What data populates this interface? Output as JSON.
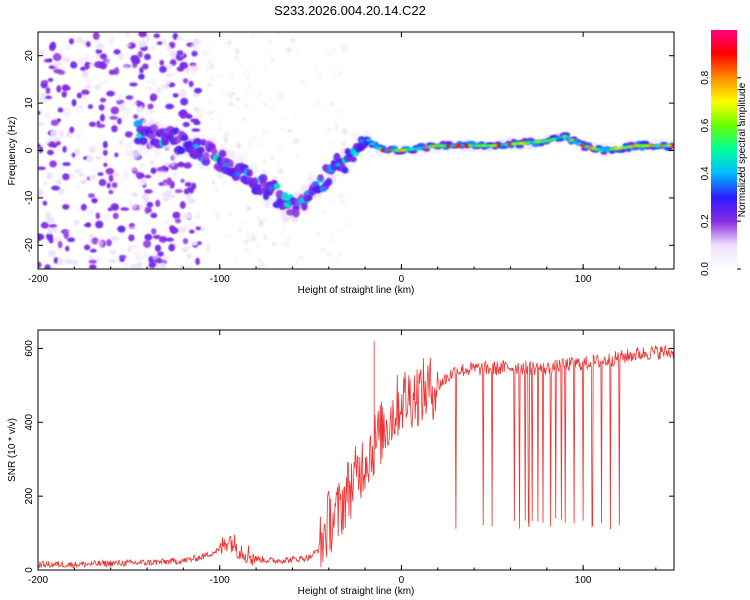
{
  "title": "S233.2026.004.20.14.C22",
  "chart_data": [
    {
      "type": "heatmap",
      "name": "spectrogram",
      "xlabel": "Height of straight line (km)",
      "ylabel": "Frequency (Hz)",
      "xlim": [
        -200,
        150
      ],
      "ylim": [
        -25,
        25
      ],
      "xticks": [
        -200,
        -100,
        0,
        100
      ],
      "yticks": [
        -20,
        -10,
        0,
        10,
        20
      ],
      "colorbar": {
        "label": "Normalized spectral amplitude",
        "range": [
          0,
          1
        ],
        "ticks": [
          0.0,
          0.2,
          0.4,
          0.6,
          0.8
        ],
        "colormap": [
          "#ffffff",
          "#ece0fb",
          "#8a2be2",
          "#2b1cff",
          "#00bcff",
          "#00ff9c",
          "#66ff00",
          "#ffff00",
          "#ff8c00",
          "#ff0000",
          "#ff0080"
        ]
      },
      "dominant_ridge": [
        {
          "x": -145,
          "y": 4
        },
        {
          "x": -130,
          "y": 3
        },
        {
          "x": -115,
          "y": 1
        },
        {
          "x": -100,
          "y": -2
        },
        {
          "x": -90,
          "y": -4
        },
        {
          "x": -80,
          "y": -7
        },
        {
          "x": -70,
          "y": -9
        },
        {
          "x": -60,
          "y": -12
        },
        {
          "x": -50,
          "y": -9
        },
        {
          "x": -45,
          "y": -7
        },
        {
          "x": -38,
          "y": -4
        },
        {
          "x": -30,
          "y": -2
        },
        {
          "x": -25,
          "y": 1
        },
        {
          "x": -20,
          "y": 3
        },
        {
          "x": -15,
          "y": 1
        },
        {
          "x": -10,
          "y": 0
        },
        {
          "x": 0,
          "y": 0
        },
        {
          "x": 20,
          "y": 1
        },
        {
          "x": 50,
          "y": 1
        },
        {
          "x": 80,
          "y": 2
        },
        {
          "x": 90,
          "y": 3
        },
        {
          "x": 100,
          "y": 1
        },
        {
          "x": 110,
          "y": 0
        },
        {
          "x": 130,
          "y": 1
        },
        {
          "x": 150,
          "y": 1
        }
      ],
      "noise_region": {
        "x_range": [
          -200,
          -110
        ],
        "y_range": [
          -25,
          25
        ]
      }
    },
    {
      "type": "line",
      "name": "snr",
      "xlabel": "Height of straight line (km)",
      "ylabel": "SNR (10 * v/v)",
      "xlim": [
        -200,
        150
      ],
      "ylim": [
        0,
        650
      ],
      "xticks": [
        -200,
        -100,
        0,
        100
      ],
      "yticks": [
        0,
        200,
        400,
        600
      ],
      "color": "#ee3333",
      "series": [
        {
          "name": "SNR",
          "x": [
            -200,
            -180,
            -160,
            -140,
            -120,
            -110,
            -100,
            -95,
            -90,
            -80,
            -70,
            -60,
            -50,
            -45,
            -40,
            -35,
            -30,
            -25,
            -20,
            -15,
            -10,
            -5,
            0,
            10,
            20,
            25,
            30,
            40,
            50,
            60,
            70,
            80,
            90,
            100,
            110,
            120,
            130,
            140,
            150
          ],
          "y": [
            15,
            15,
            18,
            20,
            25,
            35,
            55,
            85,
            60,
            30,
            25,
            28,
            35,
            60,
            130,
            150,
            210,
            250,
            300,
            340,
            380,
            420,
            460,
            480,
            500,
            520,
            540,
            545,
            545,
            550,
            548,
            545,
            555,
            560,
            565,
            575,
            585,
            590,
            590
          ]
        }
      ],
      "spikes_down_x": [
        30,
        45,
        50,
        62,
        65,
        68,
        70,
        72,
        75,
        78,
        82,
        85,
        88,
        90,
        95,
        100,
        105,
        110,
        115,
        120
      ],
      "spikes_down_to": 110
    }
  ]
}
